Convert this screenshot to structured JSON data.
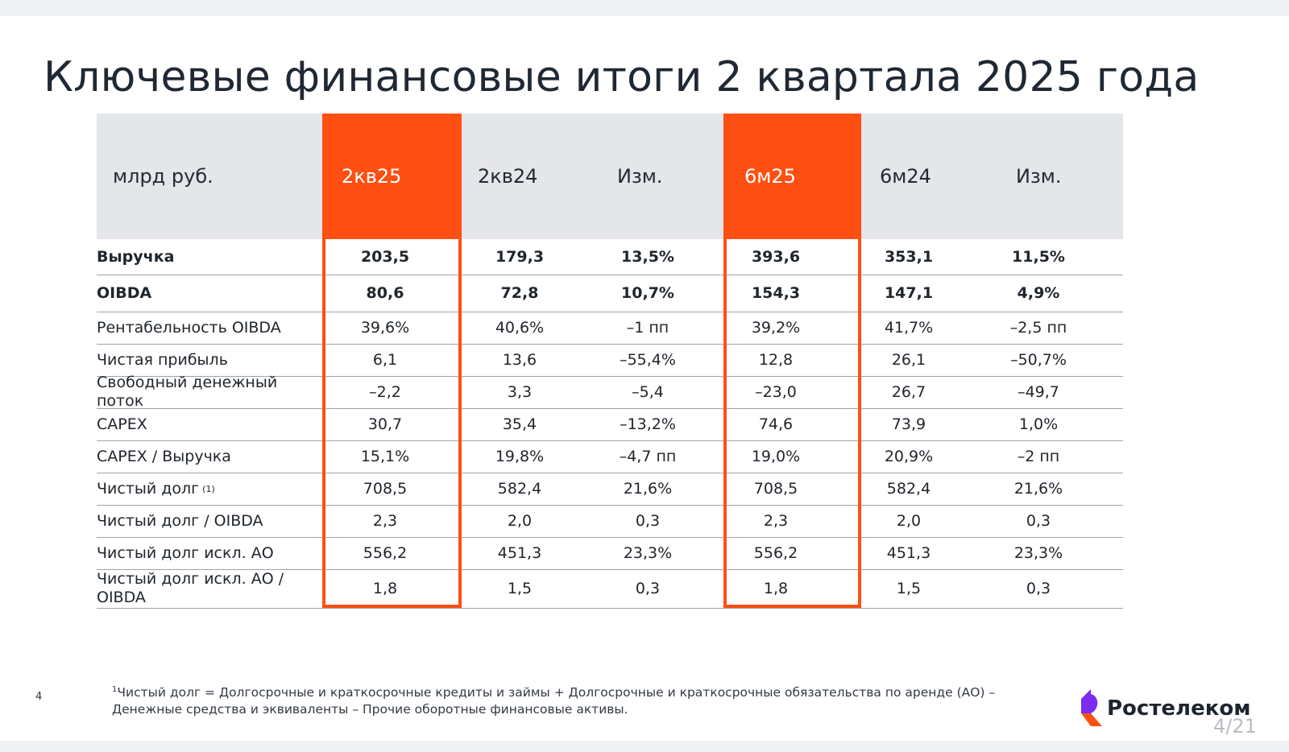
{
  "slide": {
    "title": "Ключевые финансовые итоги 2 квартала 2025 года",
    "page_number": "4",
    "viewer_counter": "4/21"
  },
  "table": {
    "headers": [
      "млрд руб.",
      "2кв25",
      "2кв24",
      "Изм.",
      "6м25",
      "6м24",
      "Изм."
    ],
    "highlighted_columns": [
      "2кв25",
      "6м25"
    ],
    "rows": [
      {
        "label": "Выручка",
        "sup": "",
        "bold": true,
        "values": [
          "203,5",
          "179,3",
          "13,5%",
          "393,6",
          "353,1",
          "11,5%"
        ]
      },
      {
        "label": "OIBDA",
        "sup": "",
        "bold": true,
        "values": [
          "80,6",
          "72,8",
          "10,7%",
          "154,3",
          "147,1",
          "4,9%"
        ]
      },
      {
        "label": "Рентабельность OIBDA",
        "sup": "",
        "bold": false,
        "values": [
          "39,6%",
          "40,6%",
          "–1 пп",
          "39,2%",
          "41,7%",
          "–2,5 пп"
        ]
      },
      {
        "label": "Чистая прибыль",
        "sup": "",
        "bold": false,
        "values": [
          "6,1",
          "13,6",
          "–55,4%",
          "12,8",
          "26,1",
          "–50,7%"
        ]
      },
      {
        "label": "Свободный денежный поток",
        "sup": "",
        "bold": false,
        "values": [
          "–2,2",
          "3,3",
          "–5,4",
          "–23,0",
          "26,7",
          "–49,7"
        ]
      },
      {
        "label": "CAPEX",
        "sup": "",
        "bold": false,
        "values": [
          "30,7",
          "35,4",
          "–13,2%",
          "74,6",
          "73,9",
          "1,0%"
        ]
      },
      {
        "label": "CAPEX / Выручка",
        "sup": "",
        "bold": false,
        "values": [
          "15,1%",
          "19,8%",
          "–4,7 пп",
          "19,0%",
          "20,9%",
          "–2 пп"
        ]
      },
      {
        "label": "Чистый долг",
        "sup": "(1)",
        "bold": false,
        "values": [
          "708,5",
          "582,4",
          "21,6%",
          "708,5",
          "582,4",
          "21,6%"
        ]
      },
      {
        "label": "Чистый долг / OIBDA",
        "sup": "",
        "bold": false,
        "values": [
          "2,3",
          "2,0",
          "0,3",
          "2,3",
          "2,0",
          "0,3"
        ]
      },
      {
        "label": "Чистый долг искл. АО",
        "sup": "",
        "bold": false,
        "values": [
          "556,2",
          "451,3",
          "23,3%",
          "556,2",
          "451,3",
          "23,3%"
        ]
      },
      {
        "label": "Чистый долг искл. АО / OIBDA",
        "sup": "",
        "bold": false,
        "values": [
          "1,8",
          "1,5",
          "0,3",
          "1,8",
          "1,5",
          "0,3"
        ]
      }
    ]
  },
  "footnote": {
    "marker": "1",
    "text": "Чистый долг = Долгосрочные и краткосрочные кредиты и займы + Долгосрочные и краткосрочные обязательства по аренде (АО) – Денежные средства и эквиваленты – Прочие оборотные финансовые активы."
  },
  "logo": {
    "text": "Ростелеком",
    "icon": "rostelecom-logo-icon"
  },
  "colors": {
    "accent": "#ff4f12",
    "header_bg": "#e4e6ea",
    "text": "#1d2530"
  }
}
